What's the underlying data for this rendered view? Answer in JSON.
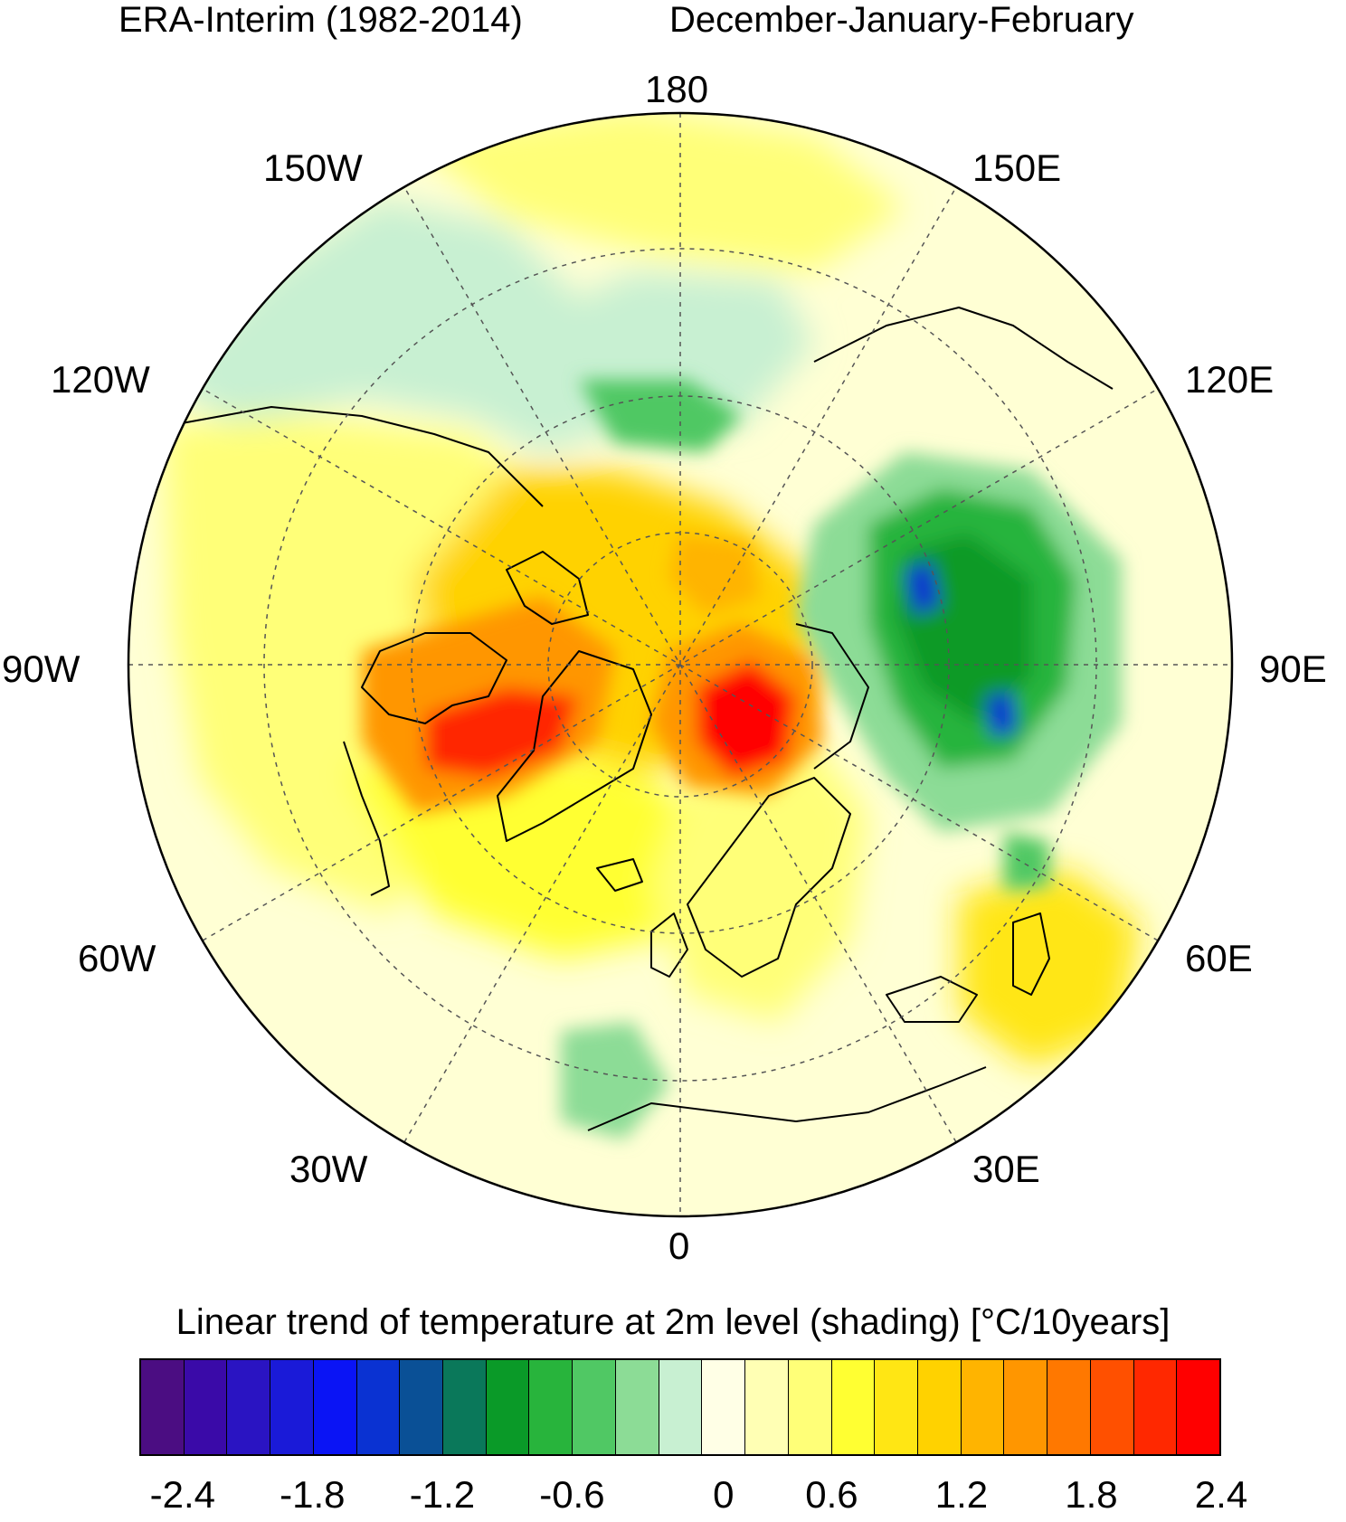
{
  "title": {
    "left": "ERA-Interim (1982-2014)",
    "right": "December-January-February"
  },
  "longitude_labels": {
    "lon_180": "180",
    "lon_150w": "150W",
    "lon_150e": "150E",
    "lon_120w": "120W",
    "lon_120e": "120E",
    "lon_90w": "90W",
    "lon_90e": "90E",
    "lon_60w": "60W",
    "lon_60e": "60E",
    "lon_30w": "30W",
    "lon_30e": "30E",
    "lon_0": "0"
  },
  "colorbar": {
    "title": "Linear trend of temperature at 2m level (shading) [°C/10years]",
    "colors": [
      "#4b0d82",
      "#3a0aa8",
      "#2a14c2",
      "#1a1ad8",
      "#0a14f5",
      "#0a32d2",
      "#0a5096",
      "#0a785a",
      "#0a9a28",
      "#28b43c",
      "#50c864",
      "#8cdc96",
      "#c8f0d2",
      "#ffffe6",
      "#ffffb4",
      "#ffff78",
      "#ffff32",
      "#ffe614",
      "#ffd200",
      "#ffb400",
      "#ff9600",
      "#ff7800",
      "#ff5000",
      "#ff2800",
      "#ff0000"
    ],
    "tick_labels": [
      "-2.4",
      "-1.8",
      "-1.2",
      "-0.6",
      "0",
      "0.6",
      "1.2",
      "1.8",
      "2.4"
    ]
  },
  "map": {
    "projection": "north-polar-stereographic",
    "background_color": "#ffffd4",
    "anomaly_regions": [
      {
        "name": "greenland-canada-warming",
        "trend": 2.2,
        "color": "#ff2800"
      },
      {
        "name": "barents-kara-warming",
        "trend": 2.4,
        "color": "#ff0000"
      },
      {
        "name": "central-arctic-warming",
        "trend": 1.6,
        "color": "#ffb400"
      },
      {
        "name": "siberia-cooling",
        "trend": -1.2,
        "color": "#0a9a28"
      },
      {
        "name": "siberia-core-cooling",
        "trend": -1.8,
        "color": "#0a32d2"
      },
      {
        "name": "bering-cooling",
        "trend": -0.6,
        "color": "#8cdc96"
      },
      {
        "name": "caspian-warming",
        "trend": 1.4,
        "color": "#ffd200"
      }
    ]
  }
}
